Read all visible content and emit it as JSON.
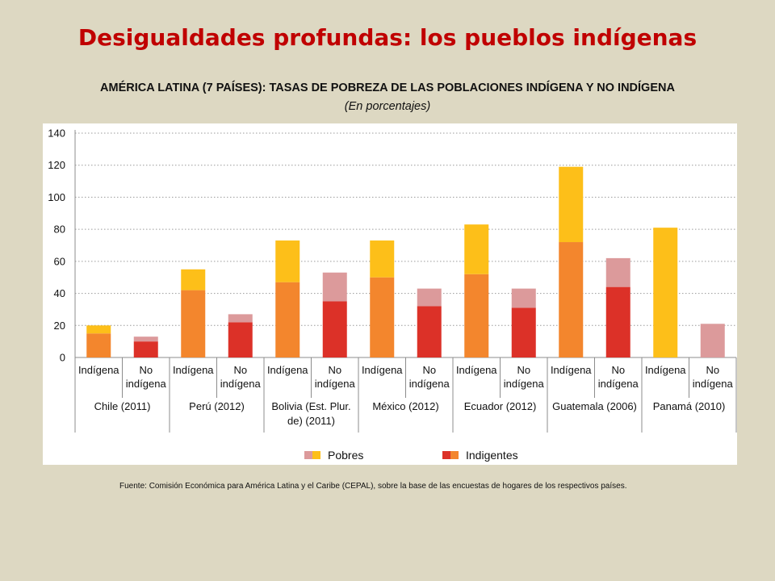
{
  "title": "Desigualdades profundas: los pueblos indígenas",
  "chart_title": "AMÉRICA LATINA (7 PAÍSES): TASAS DE POBREZA DE LAS POBLACIONES INDÍGENA Y NO INDÍGENA",
  "chart_subtitle": "(En porcentajes)",
  "source": "Fuente: Comisión Económica para América Latina y el Caribe (CEPAL), sobre la base de las encuestas de hogares de los respectivos países.",
  "colors": {
    "background": "#ddd8c2",
    "indigena_pobres": "#fdbf19",
    "indigena_indigentes": "#f3862d",
    "no_indigena_pobres": "#dc9a9b",
    "no_indigena_indigentes": "#dc3128"
  },
  "chart_data": {
    "type": "bar",
    "stacked": true,
    "y_ticks": [
      "0",
      "20",
      "40",
      "60",
      "80",
      "100",
      "120",
      "140"
    ],
    "ylim": [
      0,
      140
    ],
    "grid": true,
    "legend_position": "bottom",
    "groups": [
      "Chile (2011)",
      "Perú (2012)",
      "Bolivia (Est. Plur. de) (2011)",
      "México (2012)",
      "Ecuador (2012)",
      "Guatemala (2006)",
      "Panamá (2010)"
    ],
    "categories": [
      "Indígena",
      "No indígena"
    ],
    "series": [
      {
        "name": "Indigentes",
        "indigena": [
          15,
          42,
          47,
          50,
          52,
          72,
          0
        ],
        "no_indigena": [
          10,
          22,
          35,
          32,
          31,
          44,
          0
        ]
      },
      {
        "name": "Pobres",
        "indigena": [
          5,
          13,
          26,
          23,
          31,
          47,
          81
        ],
        "no_indigena": [
          3,
          5,
          18,
          11,
          12,
          18,
          21
        ]
      }
    ]
  }
}
